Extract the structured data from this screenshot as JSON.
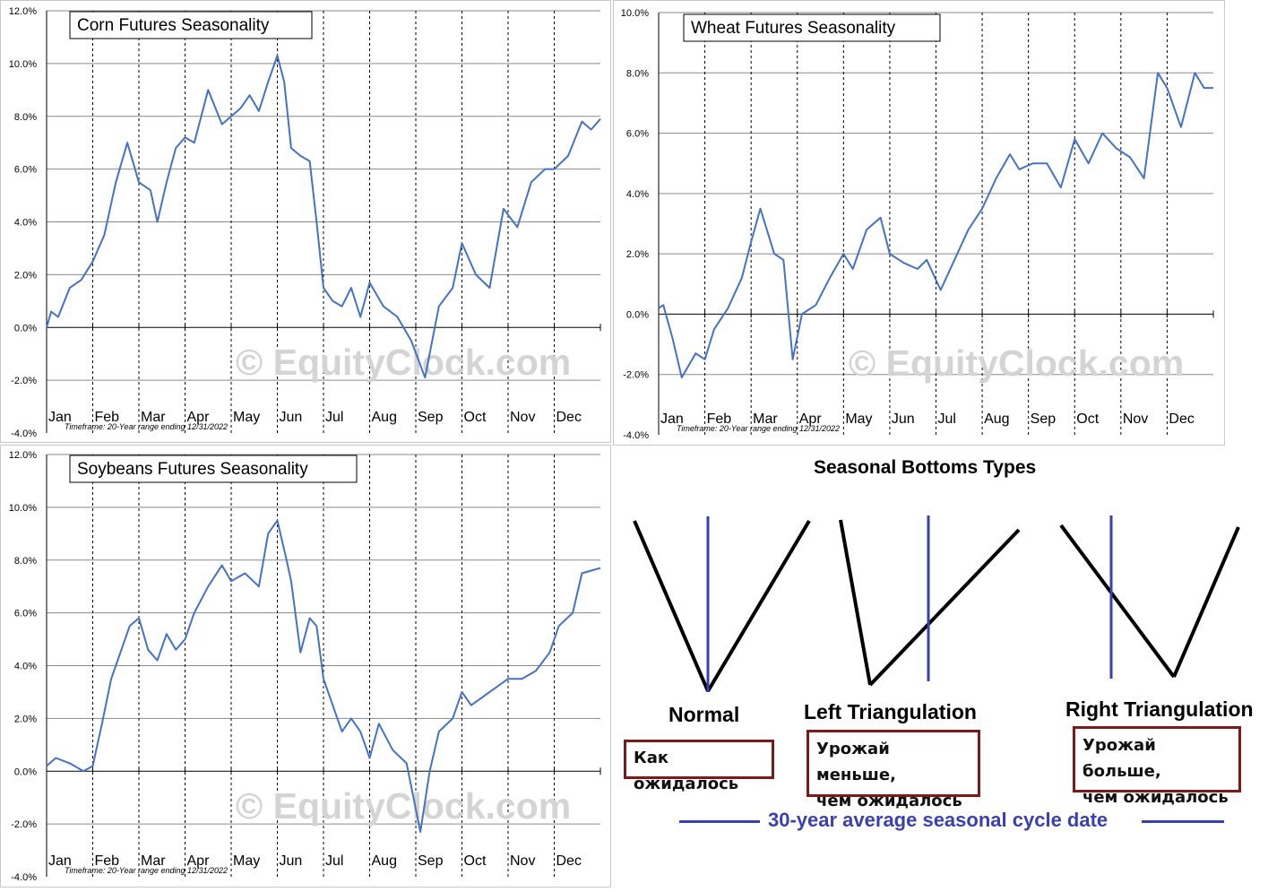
{
  "chart_data": [
    {
      "type": "line",
      "title": "Corn Futures Seasonality",
      "timeframe": "Timeframe: 20-Year range ending 12/31/2022",
      "watermark": "© EquityClock.com",
      "categories": [
        "Jan",
        "Feb",
        "Mar",
        "Apr",
        "May",
        "Jun",
        "Jul",
        "Aug",
        "Sep",
        "Oct",
        "Nov",
        "Dec"
      ],
      "yticks": [
        "12.0%",
        "10.0%",
        "8.0%",
        "6.0%",
        "4.0%",
        "2.0%",
        "0.0%",
        "-2.0%",
        "-4.0%"
      ],
      "ylim": [
        -4,
        12
      ],
      "grid": true,
      "line_color": "#4472c4",
      "series": [
        {
          "x": [
            0,
            0.1,
            0.25,
            0.5,
            0.75,
            1,
            1.25,
            1.5,
            1.75,
            2,
            2.25,
            2.4,
            2.6,
            2.8,
            3,
            3.2,
            3.5,
            3.8,
            4,
            4.2,
            4.4,
            4.6,
            4.8,
            5,
            5.15,
            5.3,
            5.5,
            5.7,
            5.85,
            6,
            6.2,
            6.4,
            6.6,
            6.8,
            7,
            7.3,
            7.6,
            7.9,
            8.2,
            8.5,
            8.8,
            9,
            9.3,
            9.6,
            9.9,
            10.2,
            10.5,
            10.8,
            11,
            11.3,
            11.6,
            11.8,
            12
          ],
          "values": [
            0,
            0.6,
            0.4,
            1.5,
            1.8,
            2.5,
            3.5,
            5.5,
            7.0,
            5.5,
            5.2,
            4.0,
            5.5,
            6.8,
            7.2,
            7.0,
            9.0,
            7.7,
            8.0,
            8.3,
            8.8,
            8.2,
            9.3,
            10.3,
            9.3,
            6.8,
            6.5,
            6.3,
            4.0,
            1.5,
            1.0,
            0.8,
            1.5,
            0.4,
            1.7,
            0.8,
            0.4,
            -0.5,
            -1.9,
            0.8,
            1.5,
            3.2,
            2.0,
            1.5,
            4.5,
            3.8,
            5.5,
            6.0,
            6.0,
            6.5,
            7.8,
            7.5,
            7.9
          ]
        }
      ]
    },
    {
      "type": "line",
      "title": "Wheat Futures Seasonality",
      "timeframe": "Timeframe: 20-Year range ending 12/31/2022",
      "watermark": "© EquityClock.com",
      "categories": [
        "Jan",
        "Feb",
        "Mar",
        "Apr",
        "May",
        "Jun",
        "Jul",
        "Aug",
        "Sep",
        "Oct",
        "Nov",
        "Dec"
      ],
      "yticks": [
        "10.0%",
        "8.0%",
        "6.0%",
        "4.0%",
        "2.0%",
        "0.0%",
        "-2.0%",
        "-4.0%"
      ],
      "ylim": [
        -4,
        10
      ],
      "grid": true,
      "line_color": "#4472c4",
      "series": [
        {
          "x": [
            0,
            0.1,
            0.3,
            0.5,
            0.8,
            1,
            1.2,
            1.5,
            1.8,
            2,
            2.2,
            2.5,
            2.7,
            2.9,
            3.1,
            3.4,
            3.7,
            4,
            4.2,
            4.5,
            4.8,
            5,
            5.3,
            5.6,
            5.8,
            6.1,
            6.4,
            6.7,
            7,
            7.3,
            7.6,
            7.8,
            8.1,
            8.4,
            8.7,
            9,
            9.3,
            9.6,
            9.9,
            10.2,
            10.5,
            10.8,
            11,
            11.3,
            11.6,
            11.8,
            12
          ],
          "values": [
            0.2,
            0.3,
            -0.8,
            -2.1,
            -1.3,
            -1.5,
            -0.5,
            0.2,
            1.2,
            2.4,
            3.5,
            2.0,
            1.8,
            -1.5,
            0,
            0.3,
            1.2,
            2.0,
            1.5,
            2.8,
            3.2,
            2.0,
            1.7,
            1.5,
            1.8,
            0.8,
            1.8,
            2.8,
            3.5,
            4.5,
            5.3,
            4.8,
            5.0,
            5.0,
            4.2,
            5.8,
            5.0,
            6.0,
            5.5,
            5.2,
            4.5,
            8.0,
            7.5,
            6.2,
            8.0,
            7.5,
            7.5
          ]
        }
      ]
    },
    {
      "type": "line",
      "title": "Soybeans Futures Seasonality",
      "timeframe": "Timeframe: 20-Year range ending 12/31/2022",
      "watermark": "© EquityClock.com",
      "categories": [
        "Jan",
        "Feb",
        "Mar",
        "Apr",
        "May",
        "Jun",
        "Jul",
        "Aug",
        "Sep",
        "Oct",
        "Nov",
        "Dec"
      ],
      "yticks": [
        "12.0%",
        "10.0%",
        "8.0%",
        "6.0%",
        "4.0%",
        "2.0%",
        "0.0%",
        "-2.0%",
        "-4.0%"
      ],
      "ylim": [
        -4,
        12
      ],
      "grid": true,
      "line_color": "#4472c4",
      "series": [
        {
          "x": [
            0,
            0.2,
            0.5,
            0.8,
            1,
            1.2,
            1.4,
            1.6,
            1.8,
            2,
            2.2,
            2.4,
            2.6,
            2.8,
            3,
            3.2,
            3.5,
            3.8,
            4,
            4.3,
            4.6,
            4.8,
            5,
            5.2,
            5.3,
            5.5,
            5.7,
            5.85,
            6,
            6.2,
            6.4,
            6.6,
            6.8,
            7,
            7.2,
            7.5,
            7.8,
            8.1,
            8.3,
            8.5,
            8.8,
            9,
            9.2,
            9.6,
            10,
            10.3,
            10.6,
            10.9,
            11.1,
            11.4,
            11.6,
            11.8,
            12
          ],
          "values": [
            0.2,
            0.5,
            0.3,
            0,
            0.2,
            1.8,
            3.5,
            4.5,
            5.5,
            5.8,
            4.6,
            4.2,
            5.2,
            4.6,
            5.0,
            6.0,
            7.0,
            7.8,
            7.2,
            7.5,
            7.0,
            9.0,
            9.5,
            8.0,
            7.2,
            4.5,
            5.8,
            5.5,
            3.5,
            2.5,
            1.5,
            2.0,
            1.5,
            0.5,
            1.8,
            0.8,
            0.3,
            -2.3,
            0,
            1.5,
            2.0,
            3.0,
            2.5,
            3.0,
            3.5,
            3.5,
            3.8,
            4.5,
            5.5,
            6.0,
            7.5,
            7.6,
            7.7
          ]
        }
      ]
    }
  ],
  "bottoms": {
    "title": "Seasonal Bottoms Types",
    "normal_label": "Normal",
    "normal_box": "Как ожидалось",
    "left_label": "Left Triangulation",
    "left_box_1": "Урожай меньше,",
    "left_box_2": "чем ожидалось",
    "right_label": "Right Triangulation",
    "right_box_1": "Урожай больше,",
    "right_box_2": "чем ожидалось",
    "legend": "30-year average seasonal cycle date",
    "black": "#000000",
    "blue": "#3a3fb2",
    "box_border": "#7b1a1a"
  }
}
